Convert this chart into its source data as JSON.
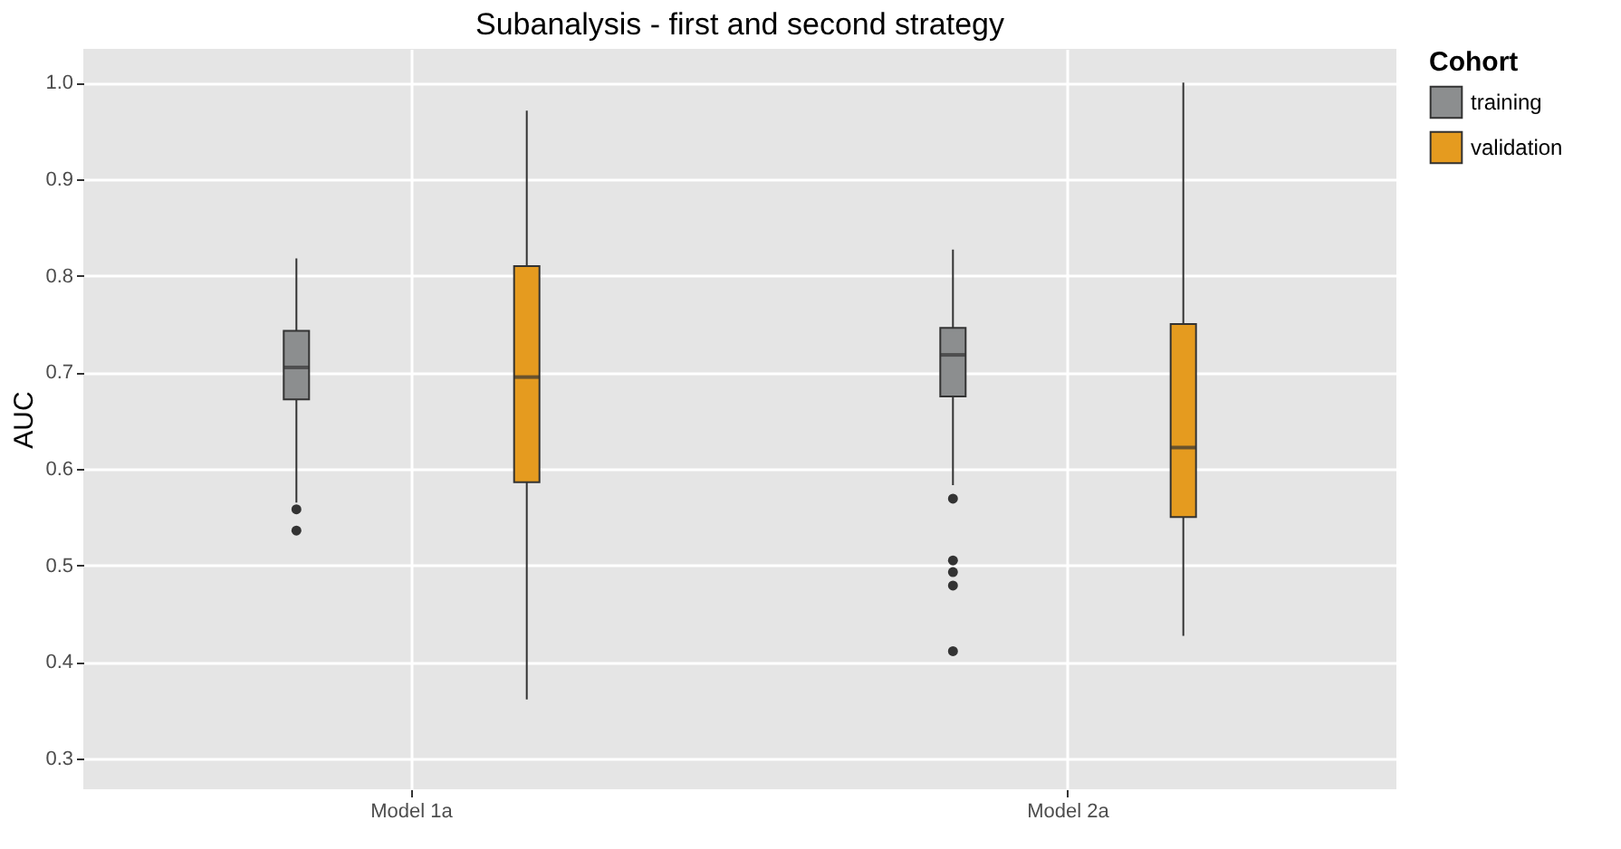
{
  "chart_data": {
    "type": "box",
    "title": "Subanalysis - first and second strategy",
    "ylabel": "AUC",
    "legend_title": "Cohort",
    "legend": "right",
    "grid": true,
    "categories": [
      "Model 1a",
      "Model 2a"
    ],
    "ylim": [
      0.268,
      1.035
    ],
    "yticks": [
      {
        "value": 0.3,
        "label": "0.3"
      },
      {
        "value": 0.4,
        "label": "0.4"
      },
      {
        "value": 0.5,
        "label": "0.5"
      },
      {
        "value": 0.6,
        "label": "0.6"
      },
      {
        "value": 0.7,
        "label": "0.7"
      },
      {
        "value": 0.8,
        "label": "0.8"
      },
      {
        "value": 0.9,
        "label": "0.9"
      },
      {
        "value": 1.0,
        "label": "1.0"
      }
    ],
    "series": [
      {
        "name": "training",
        "color": "#8c8e8f",
        "boxes": [
          {
            "low": 0.565,
            "q1": 0.672,
            "median": 0.705,
            "q3": 0.743,
            "high": 0.818,
            "outliers": [
              0.558,
              0.536
            ]
          },
          {
            "low": 0.583,
            "q1": 0.675,
            "median": 0.718,
            "q3": 0.746,
            "high": 0.827,
            "outliers": [
              0.569,
              0.505,
              0.493,
              0.479,
              0.411
            ]
          }
        ]
      },
      {
        "name": "validation",
        "color": "#e59b1f",
        "boxes": [
          {
            "low": 0.361,
            "q1": 0.586,
            "median": 0.695,
            "q3": 0.81,
            "high": 0.971
          },
          {
            "low": 0.427,
            "q1": 0.55,
            "median": 0.622,
            "q3": 0.75,
            "high": 1.0
          }
        ]
      }
    ]
  }
}
